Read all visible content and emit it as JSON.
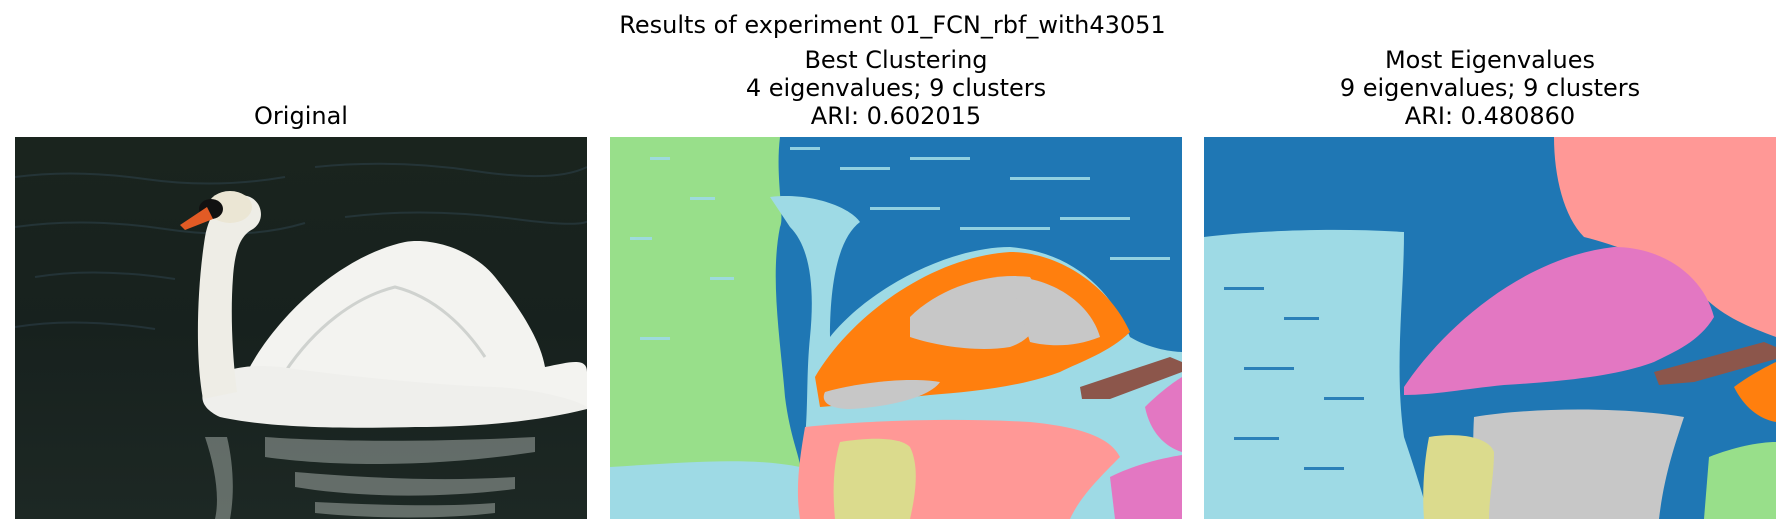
{
  "figure": {
    "title": "Results of experiment 01_FCN_rbf_with43051"
  },
  "panels": [
    {
      "title_lines": [
        "Original"
      ],
      "image": "swan on dark water with its reflection"
    },
    {
      "title_lines": [
        "Best Clustering",
        "4 eigenvalues; 9 clusters",
        "ARI: 0.602015"
      ],
      "segment_colors": {
        "water_left": "#98df8a",
        "background": "#1f77b4",
        "swan_outline": "#9edae5",
        "wing_orange": "#ff7f0e",
        "wing_gray": "#c7c7c7",
        "beak": "#8c564b",
        "reflection_pink": "#ff9896",
        "reflection_yellow": "#dbdb8d",
        "right_edge": "#e377c2"
      }
    },
    {
      "title_lines": [
        "Most Eigenvalues",
        "9 eigenvalues; 9 clusters",
        "ARI: 0.480860"
      ],
      "segment_colors": {
        "background": "#1f77b4",
        "top_right": "#ff9896",
        "left_light": "#9edae5",
        "wing_pink": "#e377c2",
        "beak": "#8c564b",
        "tip_orange": "#ff7f0e",
        "reflection_gray": "#c7c7c7",
        "reflection_yellow": "#dbdb8d",
        "corner_green": "#98df8a"
      }
    }
  ]
}
